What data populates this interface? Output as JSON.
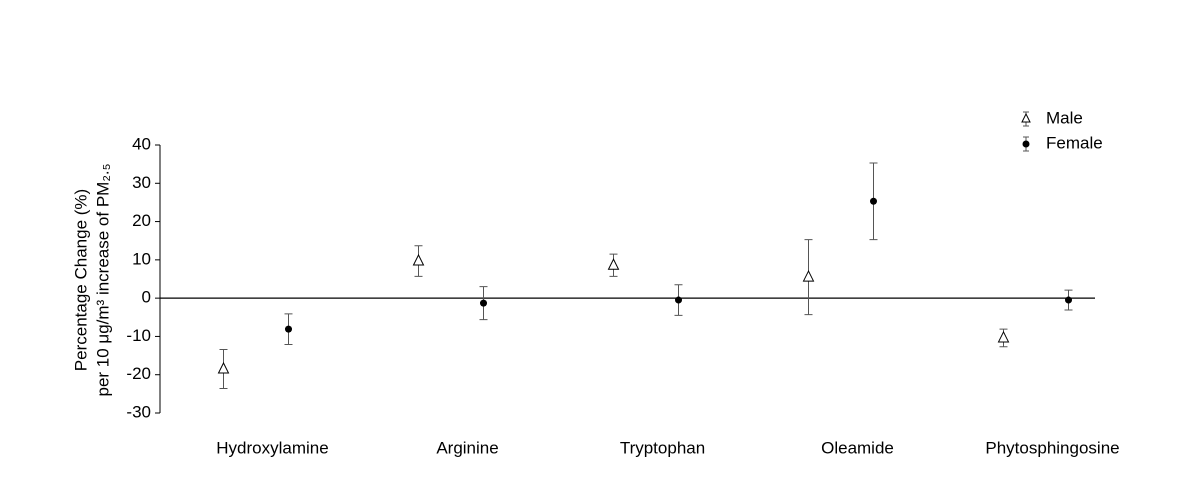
{
  "chart_data": {
    "type": "errorbar",
    "ylabel": [
      "Percentage Change (%)",
      "per 10 μg/m³ increase of PM₂.₅"
    ],
    "categories": [
      "Hydroxylamine",
      "Arginine",
      "Tryptophan",
      "Oleamide",
      "Phytosphingosine"
    ],
    "series": [
      {
        "name": "Male",
        "color": "#000000",
        "marker": "triangle",
        "values": [
          -18.5,
          9.7,
          8.6,
          5.5,
          -10.4
        ],
        "errors": [
          5.1,
          4.0,
          2.9,
          9.8,
          2.3
        ]
      },
      {
        "name": "Female",
        "color": "#000000",
        "marker": "circle",
        "values": [
          -8.1,
          -1.3,
          -0.5,
          25.3,
          -0.5
        ],
        "errors": [
          4.0,
          4.3,
          4.0,
          10.0,
          2.6
        ]
      }
    ],
    "ylim": [
      -30,
      40
    ],
    "yticks": [
      -30,
      -20,
      -10,
      0,
      10,
      20,
      30,
      40
    ],
    "legend": "top-right"
  }
}
